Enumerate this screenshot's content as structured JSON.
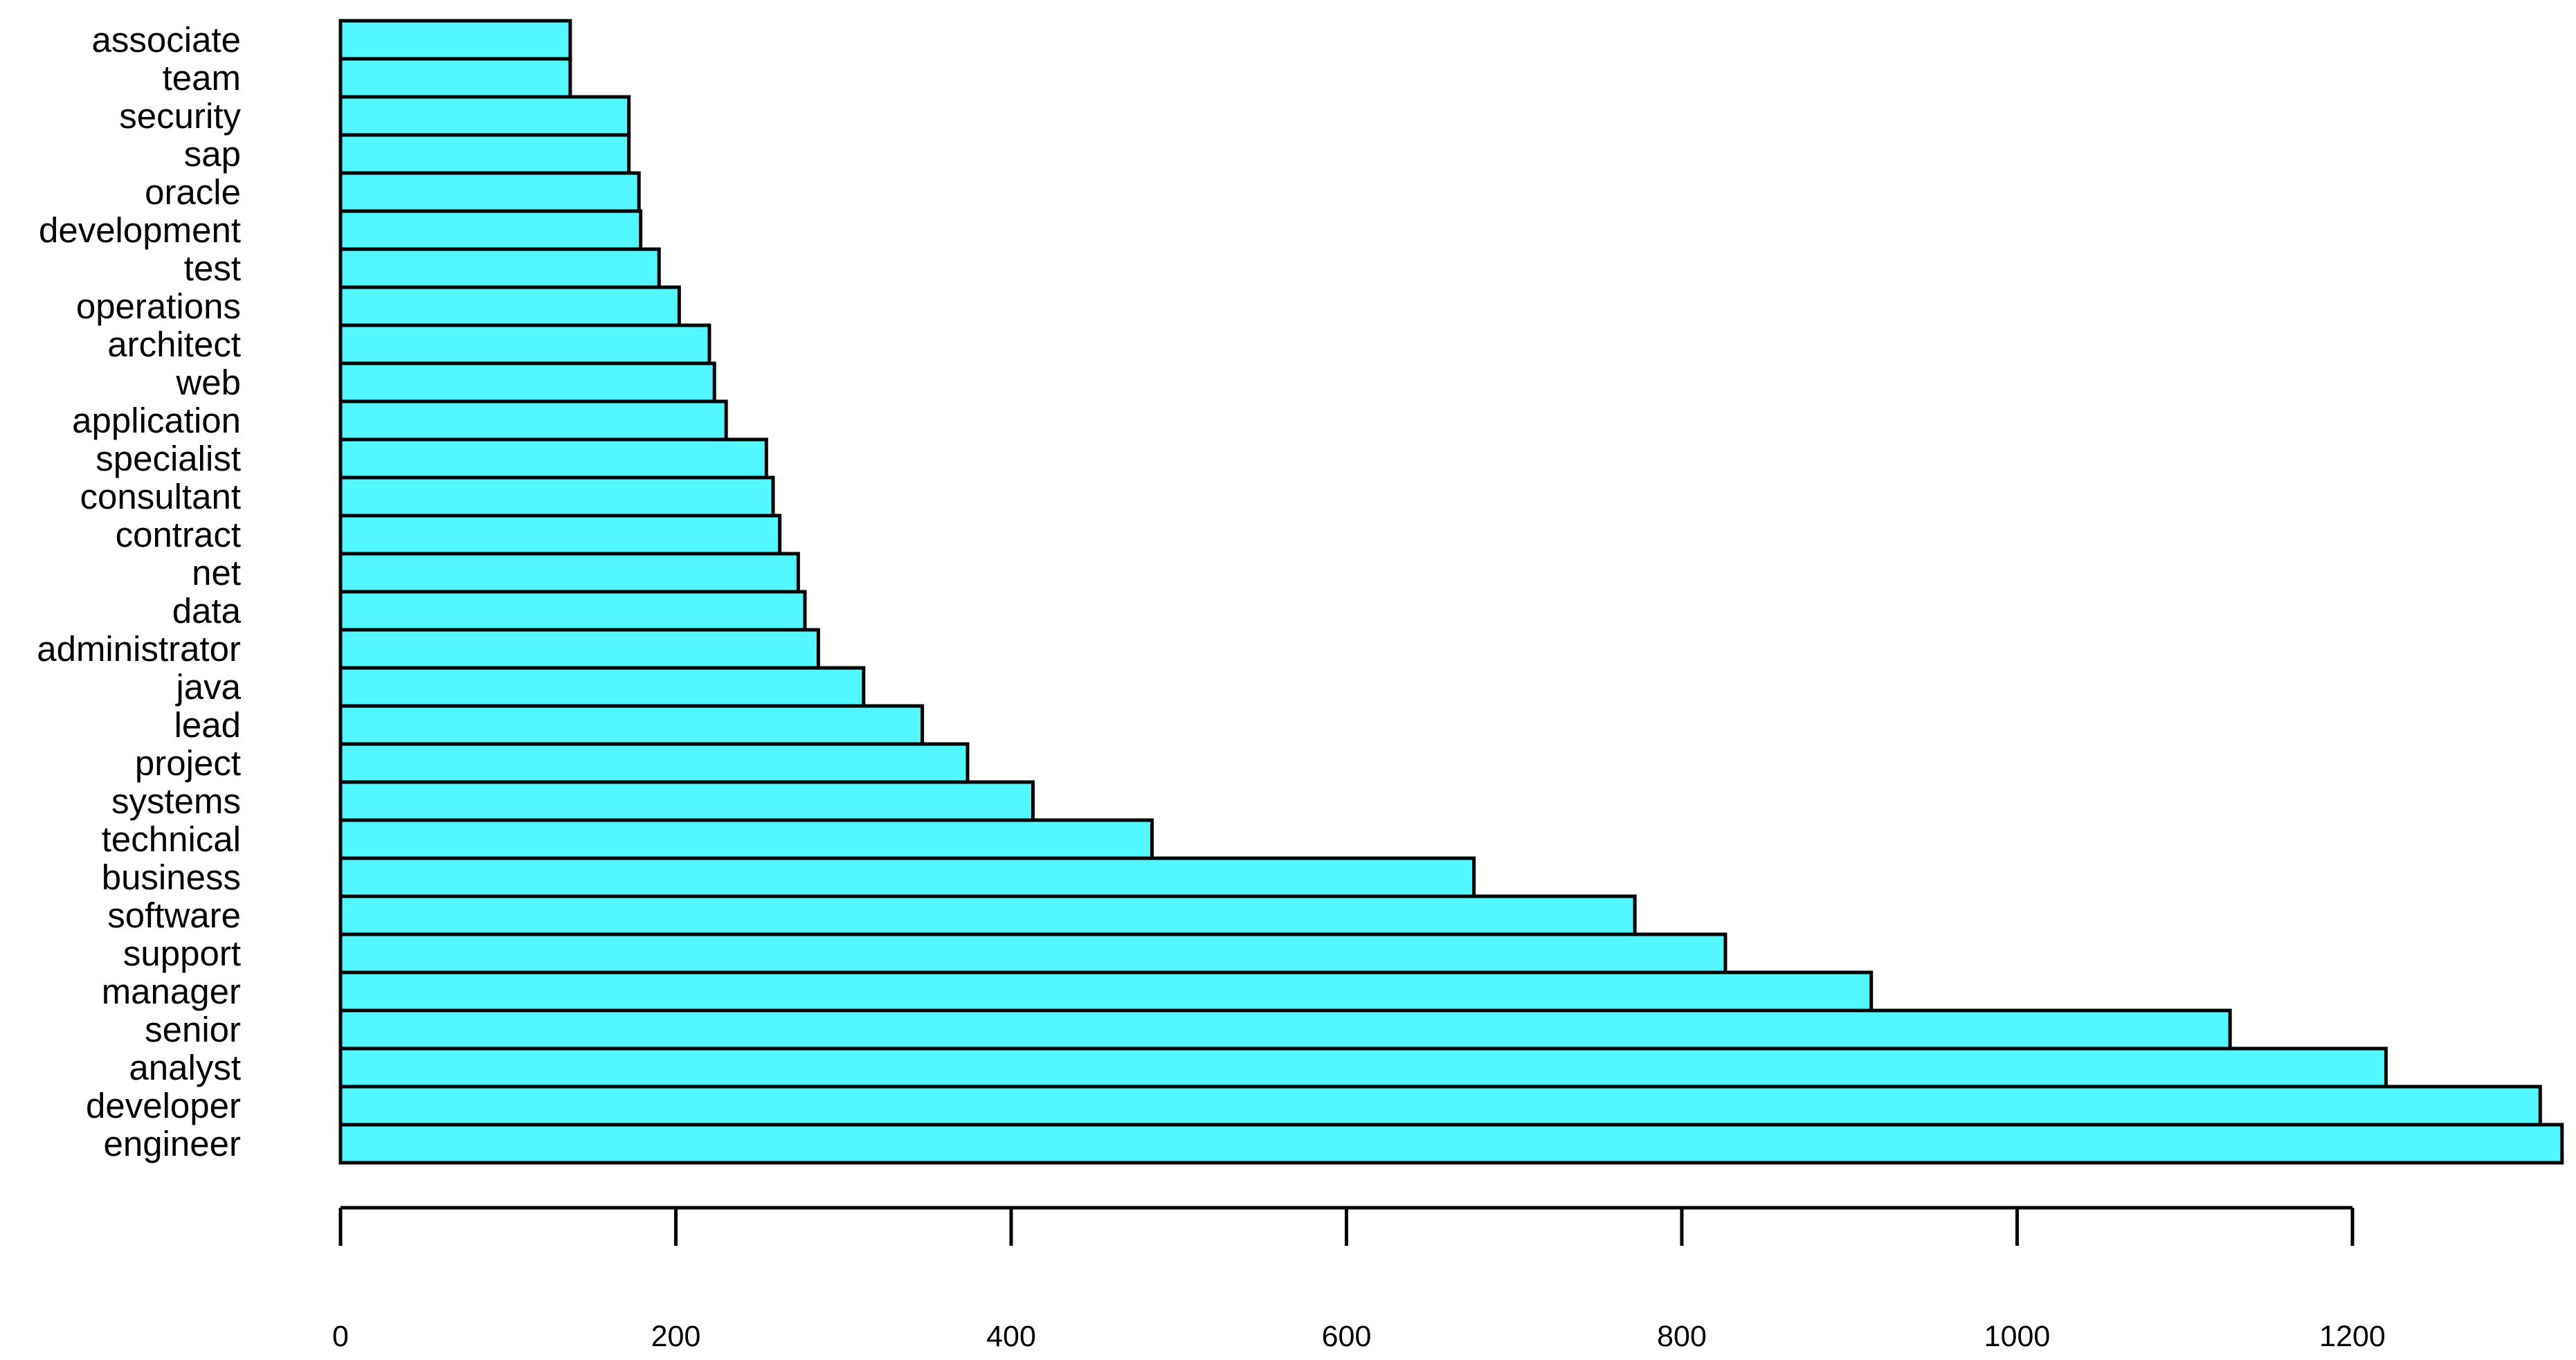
{
  "chart_data": {
    "type": "bar",
    "orientation": "horizontal",
    "title": "",
    "xlabel": "",
    "ylabel": "",
    "categories": [
      "engineer",
      "developer",
      "analyst",
      "senior",
      "manager",
      "support",
      "software",
      "business",
      "technical",
      "systems",
      "project",
      "lead",
      "java",
      "administrator",
      "data",
      "net",
      "contract",
      "consultant",
      "specialist",
      "application",
      "web",
      "architect",
      "operations",
      "test",
      "development",
      "oracle",
      "sap",
      "security",
      "team",
      "associate"
    ],
    "values": [
      1325,
      1312,
      1220,
      1127,
      913,
      826,
      772,
      676,
      484,
      413,
      374,
      347,
      312,
      285,
      277,
      273,
      262,
      258,
      254,
      230,
      223,
      220,
      202,
      190,
      179,
      178,
      172,
      172,
      137,
      137
    ],
    "xlim": [
      0,
      1325
    ],
    "xticks": [
      0,
      200,
      400,
      600,
      800,
      1000,
      1200
    ],
    "xtick_labels": [
      "0",
      "200",
      "400",
      "600",
      "800",
      "1000",
      "1200"
    ],
    "grid": false,
    "legend": "none",
    "bar_color": "#52f7ff",
    "edge_color": "#000000"
  }
}
